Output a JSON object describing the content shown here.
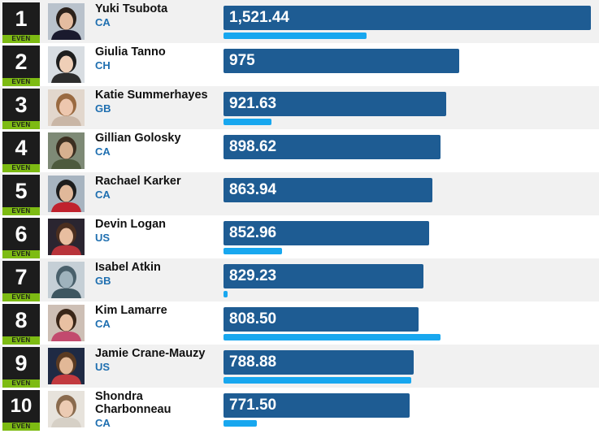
{
  "leaderboard": {
    "badge_label": "EVEN",
    "max_score": 1521.44,
    "rows": [
      {
        "rank": "1",
        "name": "Yuki Tsubota",
        "country": "CA",
        "score": "1,521.44",
        "score_value": 1521.44,
        "progress": 0.39,
        "photo_colors": {
          "bg": "#b9c2cc",
          "hair": "#2b211b",
          "skin": "#e4bca0",
          "shirt": "#1a1a2e"
        }
      },
      {
        "rank": "2",
        "name": "Giulia Tanno",
        "country": "CH",
        "score": "975",
        "score_value": 975,
        "progress": 0,
        "photo_colors": {
          "bg": "#d8dde2",
          "hair": "#1e1e1e",
          "skin": "#efcfb7",
          "shirt": "#2d2d2d"
        }
      },
      {
        "rank": "3",
        "name": "Katie Summerhayes",
        "country": "GB",
        "score": "921.63",
        "score_value": 921.63,
        "progress": 0.13,
        "photo_colors": {
          "bg": "#e2d7cd",
          "hair": "#9a6a41",
          "skin": "#edc7ae",
          "shirt": "#c9b6a6"
        }
      },
      {
        "rank": "4",
        "name": "Gillian Golosky",
        "country": "CA",
        "score": "898.62",
        "score_value": 898.62,
        "progress": 0,
        "photo_colors": {
          "bg": "#7e8a76",
          "hair": "#3c2f21",
          "skin": "#d7b08f",
          "shirt": "#4d5a3d"
        }
      },
      {
        "rank": "5",
        "name": "Rachael Karker",
        "country": "CA",
        "score": "863.94",
        "score_value": 863.94,
        "progress": 0,
        "photo_colors": {
          "bg": "#a7b4c0",
          "hair": "#1d1d1d",
          "skin": "#e0b89a",
          "shirt": "#c0222e"
        }
      },
      {
        "rank": "6",
        "name": "Devin Logan",
        "country": "US",
        "score": "852.96",
        "score_value": 852.96,
        "progress": 0.16,
        "photo_colors": {
          "bg": "#2a2530",
          "hair": "#4a2e1f",
          "skin": "#e8bea0",
          "shirt": "#b8333a"
        }
      },
      {
        "rank": "7",
        "name": "Isabel Atkin",
        "country": "GB",
        "score": "829.23",
        "score_value": 829.23,
        "progress": 0.01,
        "photo_colors": {
          "bg": "#c5cfd6",
          "hair": "#49606b",
          "skin": "#9fb3bd",
          "shirt": "#3e5660"
        }
      },
      {
        "rank": "8",
        "name": "Kim Lamarre",
        "country": "CA",
        "score": "808.50",
        "score_value": 808.5,
        "progress": 0.59,
        "photo_colors": {
          "bg": "#cdbfb5",
          "hair": "#3a2618",
          "skin": "#e9c0a2",
          "shirt": "#c24a6e"
        }
      },
      {
        "rank": "9",
        "name": "Jamie Crane-Mauzy",
        "country": "US",
        "score": "788.88",
        "score_value": 788.88,
        "progress": 0.51,
        "photo_colors": {
          "bg": "#1f2a44",
          "hair": "#5a3a22",
          "skin": "#e2b897",
          "shirt": "#c23a3f"
        }
      },
      {
        "rank": "10",
        "name": "Shondra Charbonneau",
        "country": "CA",
        "score": "771.50",
        "score_value": 771.5,
        "progress": 0.09,
        "photo_colors": {
          "bg": "#e7e3dc",
          "hair": "#8a6b4e",
          "skin": "#eccbb3",
          "shirt": "#d6d0c6"
        }
      }
    ]
  }
}
